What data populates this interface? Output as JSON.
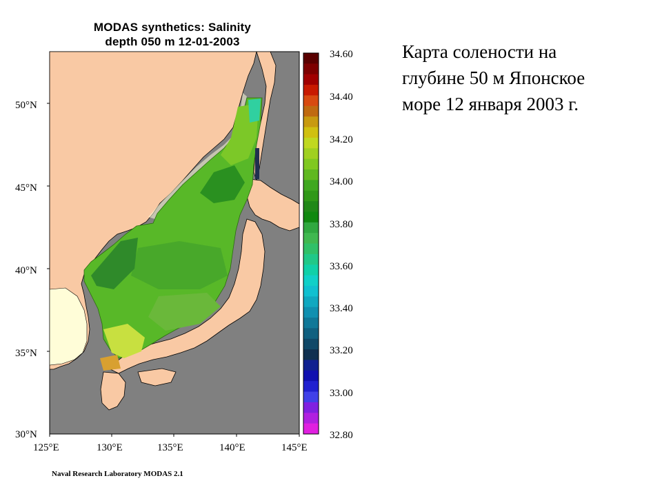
{
  "map": {
    "title_line1": "MODAS synthetics: Salinity",
    "title_line2": "depth 050 m  12-01-2003",
    "lat_labels": [
      "50°N",
      "45°N",
      "40°N",
      "35°N",
      "30°N"
    ],
    "lon_labels": [
      "125°E",
      "130°E",
      "135°E",
      "140°E",
      "145°E"
    ],
    "footer": "Naval Research Laboratory  MODAS 2.1",
    "colors": {
      "land": "#f9c9a4",
      "no_data": "#808080",
      "shelf": "#fffdd8"
    }
  },
  "colorbar": {
    "tick_labels": [
      "34.60",
      "34.40",
      "34.20",
      "34.00",
      "33.80",
      "33.60",
      "33.40",
      "33.20",
      "33.00",
      "32.80"
    ],
    "colors": [
      "#5a0000",
      "#7d0000",
      "#a00000",
      "#c81a00",
      "#d84a10",
      "#c06a10",
      "#c89a10",
      "#d0c010",
      "#c0d820",
      "#a0d020",
      "#80c820",
      "#60b820",
      "#40a820",
      "#309818",
      "#208818",
      "#108810",
      "#30a840",
      "#40b850",
      "#30c068",
      "#20c888",
      "#10d0a8",
      "#10d0c8",
      "#10c0d0",
      "#10a8c0",
      "#1090b0",
      "#107898",
      "#106080",
      "#104868",
      "#103050",
      "#102090",
      "#1010b0",
      "#2020d0",
      "#4040e8",
      "#8020e0",
      "#b020e0",
      "#e020e0"
    ]
  },
  "caption": {
    "line1": "Карта солености на",
    "line2": "глубине 50 м Японское",
    "line3": "море  12 января 2003 г."
  }
}
